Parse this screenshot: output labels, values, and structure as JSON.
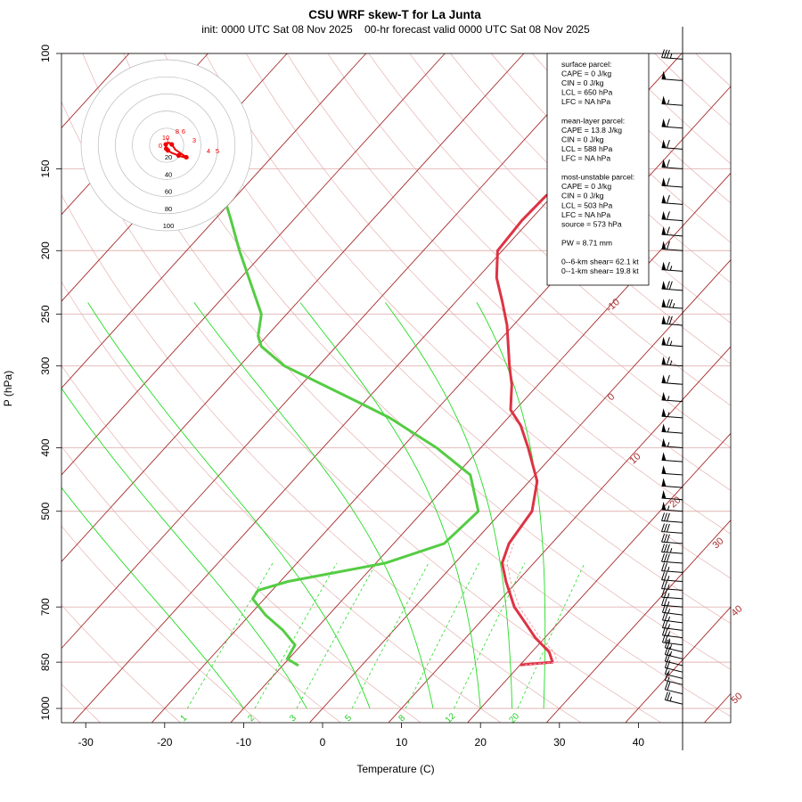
{
  "title": "CSU WRF skew-T for La Junta",
  "subtitle": "init: 0000 UTC Sat 08 Nov 2025    00-hr forecast valid 0000 UTC Sat 08 Nov 2025",
  "colors": {
    "temperature": "#dd3344",
    "dewpoint": "#55cc44",
    "isotherm": "#a52a2a",
    "dry_adiabat": "#e2a6a6",
    "moist_adiabat": "#22dd22",
    "mixing_ratio": "#22dd22",
    "isobar": "#e2b4b4",
    "hodograph": "#ee0000"
  },
  "info_box": [
    "surface parcel:",
    "CAPE = 0 J/kg",
    "CIN = 0 J/kg",
    "LCL = 650 hPa",
    "LFC = NA hPa",
    "",
    "mean-layer parcel:",
    "CAPE = 13.8 J/kg",
    "CIN = 0 J/kg",
    "LCL = 588 hPa",
    "LFC = NA hPa",
    "",
    "most-unstable parcel:",
    "CAPE = 0 J/kg",
    "CIN = 0 J/kg",
    "LCL = 503 hPa",
    "LFC = NA hPa",
    "source = 573 hPa",
    "",
    "PW =  8.71 mm",
    "",
    "0--6-km shear= 62.1 kt",
    "0--1-km shear= 19.8 kt"
  ],
  "hodograph": {
    "rings": [
      20,
      40,
      60,
      80,
      100
    ],
    "height_labels": [
      "0",
      "1",
      "3",
      "4",
      "5",
      "6",
      "8",
      "10"
    ],
    "points_kt": [
      [
        -0.5,
        -4
      ],
      [
        0.5,
        -5
      ],
      [
        1.5,
        -6
      ],
      [
        6,
        -9
      ],
      [
        14,
        -12
      ],
      [
        20,
        -14
      ],
      [
        23,
        -14
      ],
      [
        10,
        -5
      ],
      [
        6,
        1
      ],
      [
        3,
        3
      ],
      [
        -1,
        1
      ]
    ]
  },
  "chart_data": {
    "type": "skew-T",
    "title": "CSU WRF skew-T for La Junta",
    "xlabel": "Temperature (C)",
    "ylabel": "P (hPa)",
    "xlim": [
      -33,
      45
    ],
    "ylim": [
      1000,
      100
    ],
    "x_ticks": [
      "-30",
      "-20",
      "-10",
      "0",
      "10",
      "20",
      "30",
      "40"
    ],
    "y_ticks": [
      "100",
      "150",
      "200",
      "250",
      "300",
      "400",
      "500",
      "700",
      "850",
      "1000"
    ],
    "isotherm_labels": [
      "-10",
      "0",
      "10",
      "20",
      "30",
      "40",
      "50"
    ],
    "mixing_ratio_labels": [
      "1",
      "2",
      "3",
      "5",
      "8",
      "12",
      "20"
    ],
    "temperature_profile": {
      "name": "Temperature",
      "points": [
        [
          858,
          20.0
        ],
        [
          850,
          23.8
        ],
        [
          820,
          22.2
        ],
        [
          780,
          18.8
        ],
        [
          740,
          15.8
        ],
        [
          700,
          12.6
        ],
        [
          640,
          8.6
        ],
        [
          600,
          6.0
        ],
        [
          560,
          4.6
        ],
        [
          500,
          3.8
        ],
        [
          450,
          1.0
        ],
        [
          400,
          -4.0
        ],
        [
          370,
          -7.5
        ],
        [
          350,
          -10.6
        ],
        [
          320,
          -13.4
        ],
        [
          300,
          -15.8
        ],
        [
          260,
          -20.8
        ],
        [
          240,
          -24.0
        ],
        [
          220,
          -27.6
        ],
        [
          200,
          -30.6
        ],
        [
          180,
          -31.0
        ],
        [
          165,
          -30.8
        ],
        [
          150,
          -29.0
        ],
        [
          135,
          -29.3
        ],
        [
          120,
          -32.0
        ],
        [
          110,
          -34.5
        ],
        [
          105,
          -36.0
        ]
      ]
    },
    "dewpoint_profile": {
      "name": "Dewpoint",
      "points": [
        [
          860,
          -8.0
        ],
        [
          840,
          -10.2
        ],
        [
          800,
          -10.8
        ],
        [
          760,
          -14.0
        ],
        [
          720,
          -18.0
        ],
        [
          680,
          -21.5
        ],
        [
          660,
          -21.8
        ],
        [
          640,
          -19.0
        ],
        [
          600,
          -8.8
        ],
        [
          560,
          -3.6
        ],
        [
          500,
          -3.0
        ],
        [
          440,
          -8.2
        ],
        [
          400,
          -15.6
        ],
        [
          360,
          -25.0
        ],
        [
          340,
          -31.0
        ],
        [
          300,
          -44.3
        ],
        [
          280,
          -49.5
        ],
        [
          270,
          -51.1
        ],
        [
          250,
          -53.2
        ],
        [
          200,
          -63.3
        ],
        [
          180,
          -67.8
        ],
        [
          170,
          -70.3
        ]
      ]
    },
    "wind_barbs_kt": [
      [
        985,
        25
      ],
      [
        950,
        20
      ],
      [
        920,
        15
      ],
      [
        900,
        15
      ],
      [
        880,
        20
      ],
      [
        860,
        20
      ],
      [
        840,
        25
      ],
      [
        820,
        25
      ],
      [
        800,
        25
      ],
      [
        780,
        25
      ],
      [
        760,
        25
      ],
      [
        740,
        25
      ],
      [
        720,
        25
      ],
      [
        700,
        25
      ],
      [
        680,
        25
      ],
      [
        660,
        25
      ],
      [
        640,
        25
      ],
      [
        620,
        25
      ],
      [
        600,
        30
      ],
      [
        580,
        35
      ],
      [
        560,
        30
      ],
      [
        540,
        30
      ],
      [
        520,
        30
      ],
      [
        500,
        55
      ],
      [
        480,
        50
      ],
      [
        460,
        50
      ],
      [
        440,
        50
      ],
      [
        420,
        50
      ],
      [
        400,
        55
      ],
      [
        380,
        55
      ],
      [
        360,
        55
      ],
      [
        340,
        55
      ],
      [
        320,
        60
      ],
      [
        300,
        65
      ],
      [
        280,
        65
      ],
      [
        260,
        70
      ],
      [
        245,
        75
      ],
      [
        230,
        70
      ],
      [
        215,
        65
      ],
      [
        200,
        60
      ],
      [
        190,
        60
      ],
      [
        180,
        60
      ],
      [
        170,
        60
      ],
      [
        160,
        60
      ],
      [
        150,
        60
      ],
      [
        140,
        60
      ],
      [
        130,
        60
      ],
      [
        120,
        55
      ],
      [
        110,
        50
      ],
      [
        102,
        35
      ]
    ]
  }
}
